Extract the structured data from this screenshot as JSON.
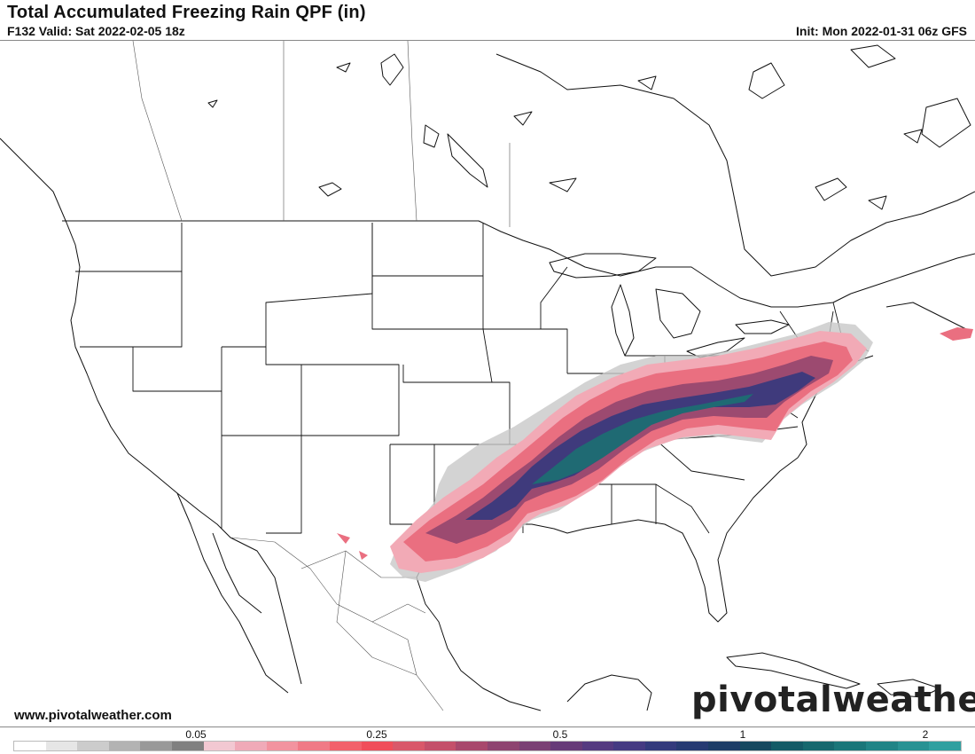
{
  "header": {
    "title": "Total Accumulated Freezing Rain QPF (in)",
    "valid": "F132 Valid: Sat 2022-02-05 18z",
    "init": "Init: Mon 2022-01-31 06z GFS"
  },
  "footer": {
    "url": "www.pivotalweather.com",
    "brand": "pivotalweather"
  },
  "legend": {
    "labels": [
      "0.05",
      "0.25",
      "0.5",
      "1",
      "2"
    ],
    "colors": [
      "#ffffff",
      "#e6e6e6",
      "#cccccc",
      "#b3b3b3",
      "#999999",
      "#808080",
      "#f2c8d2",
      "#f0aab8",
      "#f2939f",
      "#f07a86",
      "#f2616b",
      "#f04e5a",
      "#d9586a",
      "#c4506a",
      "#a8486c",
      "#8e4470",
      "#7a4074",
      "#663a78",
      "#553a80",
      "#453a82",
      "#333a7c",
      "#263a72",
      "#1c3c66",
      "#16485f",
      "#145a66",
      "#16686e",
      "#1a7679",
      "#208486",
      "#289293",
      "#30a0a0"
    ]
  },
  "map": {
    "product": "freezing-rain-accumulation",
    "colors": {
      "light": "#f2aab6",
      "mid": "#ea6f80",
      "heavy": "#9c4a70",
      "veryheavy": "#3f3a7c",
      "extreme": "#1f6a73",
      "trace": "#b3b3b3"
    }
  }
}
